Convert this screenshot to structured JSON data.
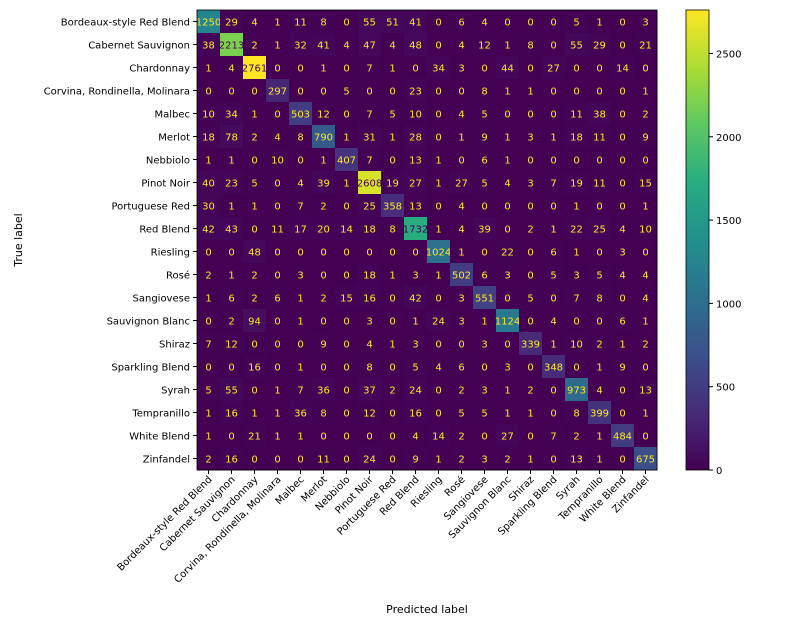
{
  "chart_data": {
    "type": "heatmap",
    "xlabel": "Predicted label",
    "ylabel": "True label",
    "labels": [
      "Bordeaux-style Red Blend",
      "Cabernet Sauvignon",
      "Chardonnay",
      "Corvina, Rondinella, Molinara",
      "Malbec",
      "Merlot",
      "Nebbiolo",
      "Pinot Noir",
      "Portuguese Red",
      "Red Blend",
      "Riesling",
      "Rosé",
      "Sangiovese",
      "Sauvignon Blanc",
      "Shiraz",
      "Sparkling Blend",
      "Syrah",
      "Tempranillo",
      "White Blend",
      "Zinfandel"
    ],
    "matrix": [
      [
        1250,
        29,
        4,
        1,
        11,
        8,
        0,
        55,
        51,
        41,
        0,
        6,
        4,
        0,
        0,
        0,
        5,
        1,
        0,
        3
      ],
      [
        38,
        2213,
        2,
        1,
        32,
        41,
        4,
        47,
        4,
        48,
        0,
        4,
        12,
        1,
        8,
        0,
        55,
        29,
        0,
        21
      ],
      [
        1,
        4,
        2761,
        0,
        0,
        1,
        0,
        7,
        1,
        0,
        34,
        3,
        0,
        44,
        0,
        27,
        0,
        0,
        14,
        0
      ],
      [
        0,
        0,
        0,
        297,
        0,
        0,
        5,
        0,
        0,
        23,
        0,
        0,
        8,
        1,
        1,
        0,
        0,
        0,
        0,
        1
      ],
      [
        10,
        34,
        1,
        0,
        503,
        12,
        0,
        7,
        5,
        10,
        0,
        4,
        5,
        0,
        0,
        0,
        11,
        38,
        0,
        2
      ],
      [
        18,
        78,
        2,
        4,
        8,
        790,
        1,
        31,
        1,
        28,
        0,
        1,
        9,
        1,
        3,
        1,
        18,
        11,
        0,
        9
      ],
      [
        1,
        1,
        0,
        10,
        0,
        1,
        407,
        7,
        0,
        13,
        1,
        0,
        6,
        1,
        0,
        0,
        0,
        0,
        0,
        0
      ],
      [
        40,
        23,
        5,
        0,
        4,
        39,
        1,
        2608,
        19,
        27,
        1,
        27,
        5,
        4,
        3,
        7,
        19,
        11,
        0,
        15
      ],
      [
        30,
        1,
        1,
        0,
        7,
        2,
        0,
        25,
        358,
        13,
        0,
        4,
        0,
        0,
        0,
        0,
        1,
        0,
        0,
        1
      ],
      [
        42,
        43,
        0,
        11,
        17,
        20,
        14,
        18,
        8,
        1732,
        1,
        4,
        39,
        0,
        2,
        1,
        22,
        25,
        4,
        10
      ],
      [
        0,
        0,
        48,
        0,
        0,
        0,
        0,
        0,
        0,
        0,
        1024,
        1,
        0,
        22,
        0,
        6,
        1,
        0,
        3,
        0
      ],
      [
        2,
        1,
        2,
        0,
        3,
        0,
        0,
        18,
        1,
        3,
        1,
        502,
        6,
        3,
        0,
        5,
        3,
        5,
        4,
        4
      ],
      [
        1,
        6,
        2,
        6,
        1,
        2,
        15,
        16,
        0,
        42,
        0,
        3,
        551,
        0,
        5,
        0,
        7,
        8,
        0,
        4
      ],
      [
        0,
        2,
        94,
        0,
        1,
        0,
        0,
        3,
        0,
        1,
        24,
        3,
        1,
        1124,
        0,
        4,
        0,
        0,
        6,
        1
      ],
      [
        7,
        12,
        0,
        0,
        0,
        9,
        0,
        4,
        1,
        3,
        0,
        0,
        3,
        0,
        339,
        1,
        10,
        2,
        1,
        2
      ],
      [
        0,
        0,
        16,
        0,
        1,
        0,
        0,
        8,
        0,
        5,
        4,
        6,
        0,
        3,
        0,
        348,
        0,
        1,
        9,
        0
      ],
      [
        5,
        55,
        0,
        1,
        7,
        36,
        0,
        37,
        2,
        24,
        0,
        2,
        3,
        1,
        2,
        0,
        973,
        4,
        0,
        13
      ],
      [
        1,
        16,
        1,
        1,
        36,
        8,
        0,
        12,
        0,
        16,
        0,
        5,
        5,
        1,
        1,
        0,
        8,
        399,
        0,
        1
      ],
      [
        1,
        0,
        21,
        1,
        1,
        0,
        0,
        0,
        0,
        4,
        14,
        2,
        0,
        27,
        0,
        7,
        2,
        1,
        484,
        0
      ],
      [
        2,
        16,
        0,
        0,
        0,
        11,
        0,
        24,
        0,
        9,
        1,
        2,
        3,
        2,
        1,
        0,
        13,
        1,
        0,
        675
      ]
    ],
    "colormap": "viridis",
    "colorbar": {
      "range": [
        0,
        2761
      ],
      "ticks": [
        "0",
        "500",
        "1000",
        "1500",
        "2000",
        "2500"
      ]
    },
    "grid": false
  }
}
